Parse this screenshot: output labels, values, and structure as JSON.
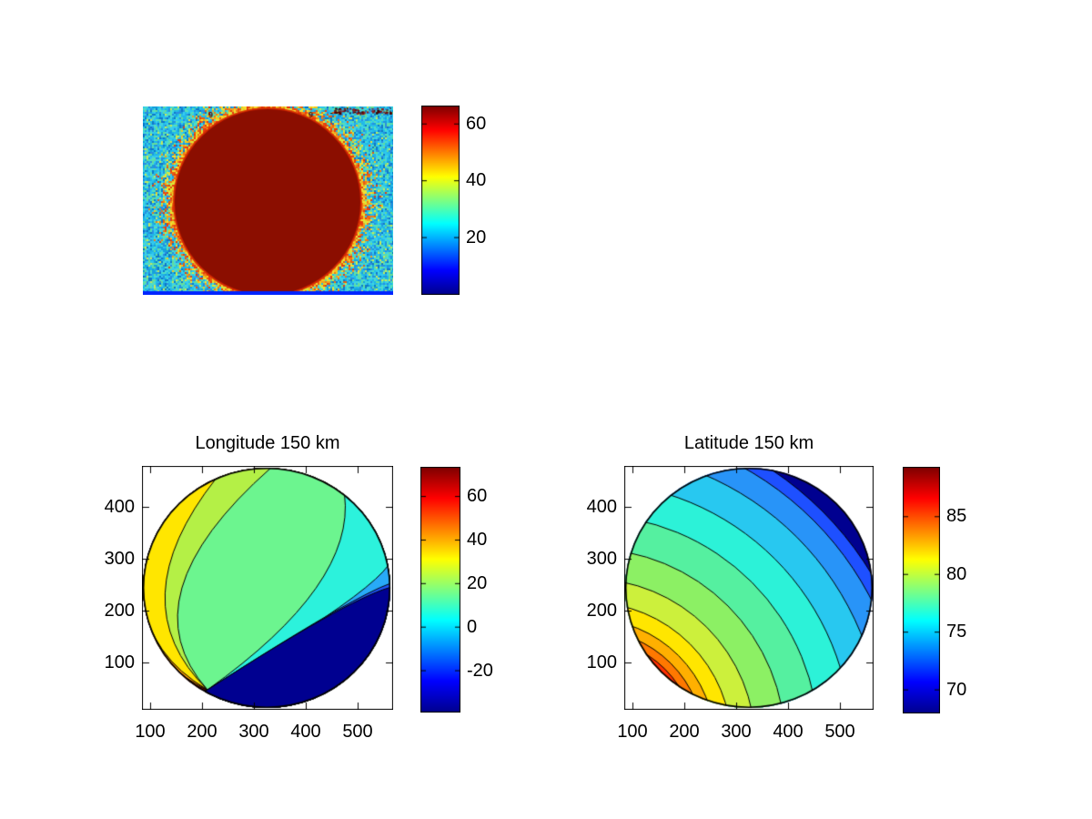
{
  "figure": {
    "background": "#ffffff"
  },
  "colormap_jet_stops": [
    "#000090",
    "#0000ff",
    "#00ffff",
    "#ffff00",
    "#ff0000",
    "#800000"
  ],
  "chart_data": [
    {
      "id": "sky-image",
      "type": "heatmap",
      "title": "",
      "description": "Noisy cyan background image with saturated dark-red circular disk, yellow-orange halo ring around the disk limb, thin blue strip along the bottom edge and small dark overlay marks near the top",
      "overlay_marks": [
        "9",
        "9"
      ],
      "palette": {
        "background_noise": [
          "#1fb4e8",
          "#2ec8ec",
          "#17a0dc",
          "#45d8d8",
          "#57e0b8",
          "#2a8ce0",
          "#66dd99",
          "#0e78c8",
          "#38ccf0",
          "#23bce8"
        ],
        "disk": "#8b0e00",
        "disk_rim": "#d82800",
        "halo": [
          "#f5e032",
          "#f0a020",
          "#e85c10",
          "#d8e838",
          "#e83c10",
          "#f07818",
          "#f5c81e"
        ],
        "bottom_strip": "#0024ff",
        "overlay_color": "#5a0000"
      },
      "colorbar": {
        "ticks": [
          20,
          40,
          60
        ],
        "range": [
          0,
          66
        ],
        "colormap": "jet"
      }
    },
    {
      "id": "longitude-contour",
      "type": "contour-filled",
      "title": "Longitude 150 km",
      "x_ticks": [
        100,
        200,
        300,
        400,
        500
      ],
      "y_ticks": [
        100,
        200,
        300,
        400
      ],
      "xlim": [
        84,
        568
      ],
      "ylim": [
        10,
        478
      ],
      "contour_levels_approx": [
        -30,
        -20,
        -10,
        0,
        10,
        20,
        30,
        40,
        50,
        60
      ],
      "band_colors_left_to_right": [
        "#800000",
        "#e00000",
        "#ff5200",
        "#ffa000",
        "#ffe600",
        "#b4f046",
        "#6cf58f",
        "#2cf2dc",
        "#28aaf8",
        "#1e56ff",
        "#000090"
      ],
      "colorbar": {
        "ticks": [
          60,
          40,
          20,
          0,
          -20
        ],
        "range": [
          -39,
          73
        ],
        "colormap": "jet"
      }
    },
    {
      "id": "latitude-contour",
      "type": "contour-filled",
      "title": "Latitude 150 km",
      "x_ticks": [
        100,
        200,
        300,
        400,
        500
      ],
      "y_ticks": [
        100,
        200,
        300,
        400
      ],
      "xlim": [
        84,
        568
      ],
      "ylim": [
        10,
        478
      ],
      "contour_levels_approx": [
        69,
        70,
        71,
        72,
        73.5,
        75,
        76.5,
        78,
        80,
        82,
        84,
        86,
        88
      ],
      "band_colors_inner_to_outer": [
        "#800000",
        "#cc0000",
        "#ff3000",
        "#ff7800",
        "#ffb000",
        "#ffe600",
        "#ccf03c",
        "#8cf064",
        "#55f0a0",
        "#2cf2d8",
        "#28c8f0",
        "#2894f8",
        "#1e50ff",
        "#000090"
      ],
      "colorbar": {
        "ticks": [
          70,
          75,
          80,
          85
        ],
        "range": [
          68,
          89.2
        ],
        "colormap": "jet"
      }
    }
  ]
}
